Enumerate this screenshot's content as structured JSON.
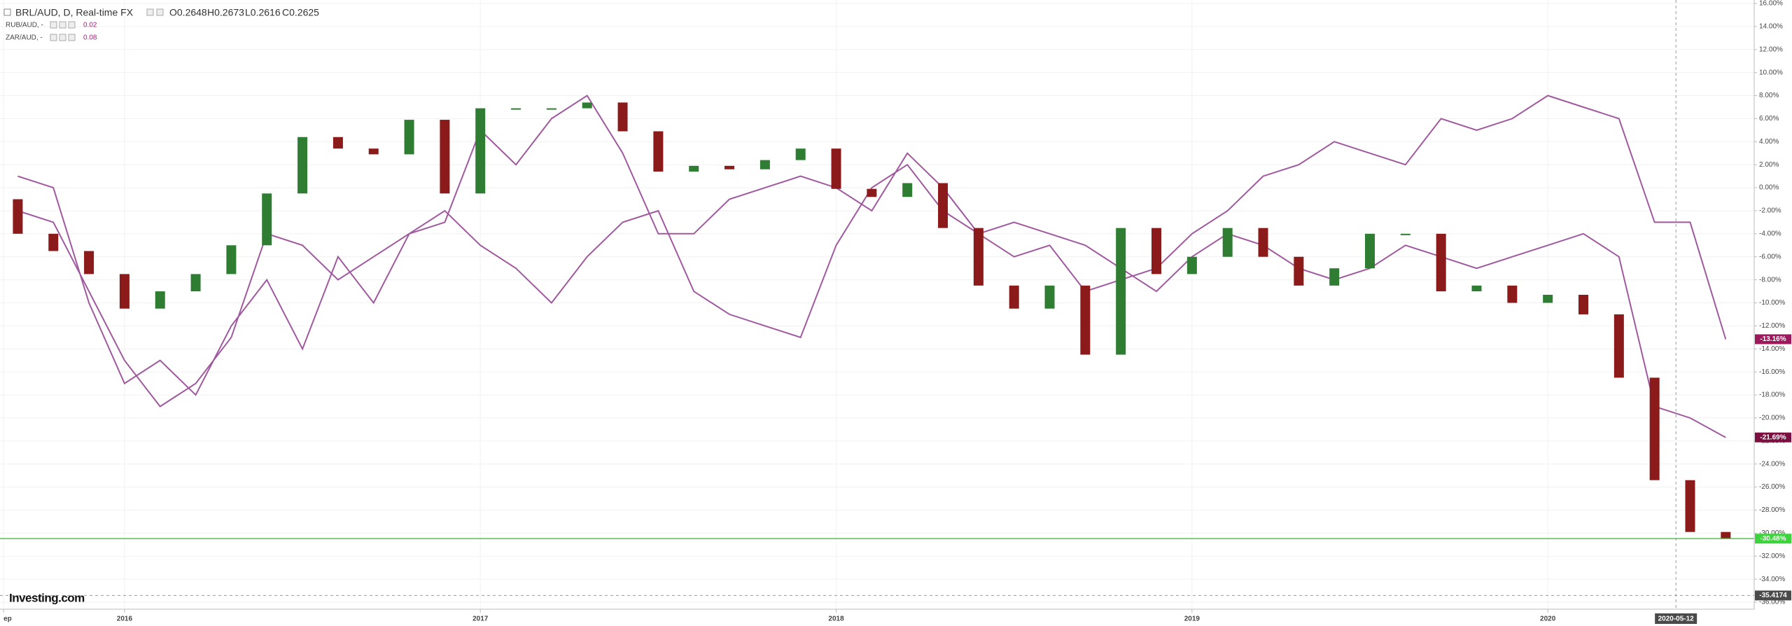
{
  "chart_data": {
    "type": "candlestick",
    "title": "BRL/AUD, D, Real-time FX",
    "ohlc_labels": [
      "O0.2648",
      "H0.2673",
      "L0.2616",
      "C0.2625"
    ],
    "logo": "Investing.com",
    "x": [
      2015.7,
      2015.8,
      2015.9,
      2016.0,
      2016.1,
      2016.2,
      2016.3,
      2016.4,
      2016.5,
      2016.6,
      2016.7,
      2016.8,
      2016.9,
      2017.0,
      2017.1,
      2017.2,
      2017.3,
      2017.4,
      2017.5,
      2017.6,
      2017.7,
      2017.8,
      2017.9,
      2018.0,
      2018.1,
      2018.2,
      2018.3,
      2018.4,
      2018.5,
      2018.6,
      2018.7,
      2018.8,
      2018.9,
      2019.0,
      2019.1,
      2019.2,
      2019.3,
      2019.4,
      2019.5,
      2019.6,
      2019.7,
      2019.8,
      2019.9,
      2020.0,
      2020.1,
      2020.2,
      2020.3,
      2020.4,
      2020.5
    ],
    "open": [
      -1,
      -4,
      -5.5,
      -7.5,
      -10.5,
      -9,
      -7.5,
      -5,
      -0.5,
      4.4,
      3.4,
      2.9,
      5.9,
      -0.5,
      6.9,
      6.9,
      6.9,
      7.4,
      4.9,
      1.4,
      1.9,
      1.6,
      2.4,
      3.4,
      -0.1,
      -0.8,
      0.4,
      -3.5,
      -8.5,
      -10.5,
      -8.5,
      -14.5,
      -3.5,
      -7.5,
      -6,
      -3.5,
      -6,
      -8.5,
      -7,
      -4,
      -4,
      -9,
      -8.5,
      -10,
      -9.3,
      -11,
      -16.5,
      -25.4,
      -29.9
    ],
    "close": [
      -4,
      -5.5,
      -7.5,
      -10.5,
      -9,
      -7.5,
      -5,
      -0.5,
      4.4,
      3.4,
      2.9,
      5.9,
      -0.5,
      6.9,
      6.9,
      6.9,
      7.4,
      4.9,
      1.4,
      1.9,
      1.6,
      2.4,
      3.4,
      -0.1,
      -0.8,
      0.4,
      -3.5,
      -8.5,
      -10.5,
      -8.5,
      -14.5,
      -3.5,
      -7.5,
      -6,
      -3.5,
      -6,
      -8.5,
      -7,
      -4,
      -4,
      -9,
      -8.5,
      -10,
      -9.3,
      -11,
      -16.5,
      -25.4,
      -29.9,
      -30.48
    ],
    "up_color": "#2e7d32",
    "down_color": "#8b1a1a",
    "series": [
      {
        "name": "RUB/AUD, -",
        "color": "#a0599e",
        "legend_value": "0.02",
        "last_label": "-13.16%",
        "badge_color": "#9c1a5c",
        "values": [
          1,
          0,
          -10,
          -17,
          -15,
          -18,
          -12,
          -8,
          -14,
          -6,
          -10,
          -4,
          -2,
          -5,
          -7,
          -10,
          -6,
          -3,
          -2,
          -9,
          -11,
          -12,
          -13,
          -5,
          0,
          2,
          -2,
          -4,
          -6,
          -5,
          -9,
          -8,
          -7,
          -4,
          -2,
          1,
          2,
          4,
          3,
          2,
          6,
          5,
          6,
          8,
          7,
          6,
          -3,
          -3,
          -13.16
        ]
      },
      {
        "name": "ZAR/AUD, -",
        "color": "#a0599e",
        "legend_value": "0.08",
        "last_label": "-21.69%",
        "badge_color": "#7b1040",
        "values": [
          -2,
          -3,
          -9,
          -15,
          -19,
          -17,
          -13,
          -4,
          -5,
          -8,
          -6,
          -4,
          -3,
          5,
          2,
          6,
          8,
          3,
          -4,
          -4,
          -1,
          0,
          1,
          0,
          -2,
          3,
          0,
          -4,
          -3,
          -4,
          -5,
          -7,
          -9,
          -6,
          -4,
          -5,
          -7,
          -8,
          -7,
          -5,
          -6,
          -7,
          -6,
          -5,
          -4,
          -6,
          -19,
          -20,
          -21.69
        ]
      }
    ],
    "price_line": {
      "value": -30.48,
      "label": "-30.48%",
      "color": "#3cd33c"
    },
    "crosshair": {
      "x": {
        "value": 2020.36,
        "label": "2020-05-12"
      },
      "y": {
        "value": -35.4174,
        "label": "-35.4174"
      }
    },
    "xlim": [
      2015.65,
      2020.58
    ],
    "xticks": [
      {
        "value": 2015.66,
        "label": "ep"
      },
      2016,
      2017,
      2018,
      2019,
      2020
    ],
    "ylim": [
      -36,
      16
    ],
    "yticks": [
      {
        "value": 16,
        "label": "16.00%"
      },
      {
        "value": 14,
        "label": "14.00%"
      },
      {
        "value": 12,
        "label": "12.00%"
      },
      {
        "value": 10,
        "label": "10.00%"
      },
      {
        "value": 8,
        "label": "8.00%"
      },
      {
        "value": 6,
        "label": "6.00%"
      },
      {
        "value": 4,
        "label": "4.00%"
      },
      {
        "value": 2,
        "label": "2.00%"
      },
      {
        "value": 0,
        "label": "0.00%"
      },
      {
        "value": -2,
        "label": "-2.00%"
      },
      {
        "value": -4,
        "label": "-4.00%"
      },
      {
        "value": -6,
        "label": "-6.00%"
      },
      {
        "value": -8,
        "label": "-8.00%"
      },
      {
        "value": -10,
        "label": "-10.00%"
      },
      {
        "value": -12,
        "label": "-12.00%"
      },
      {
        "value": -14,
        "label": "-14.00%"
      },
      {
        "value": -16,
        "label": "-16.00%"
      },
      {
        "value": -18,
        "label": "-18.00%"
      },
      {
        "value": -20,
        "label": "-20.00%"
      },
      {
        "value": -22,
        "label": "-22.00%"
      },
      {
        "value": -24,
        "label": "-24.00%"
      },
      {
        "value": -26,
        "label": "-26.00%"
      },
      {
        "value": -28,
        "label": "-28.00%"
      },
      {
        "value": -30,
        "label": "-30.00%"
      },
      {
        "value": -32,
        "label": "-32.00%"
      },
      {
        "value": -34,
        "label": "-34.00%"
      },
      {
        "value": -36,
        "label": "-36.00%"
      }
    ],
    "grid": true
  }
}
